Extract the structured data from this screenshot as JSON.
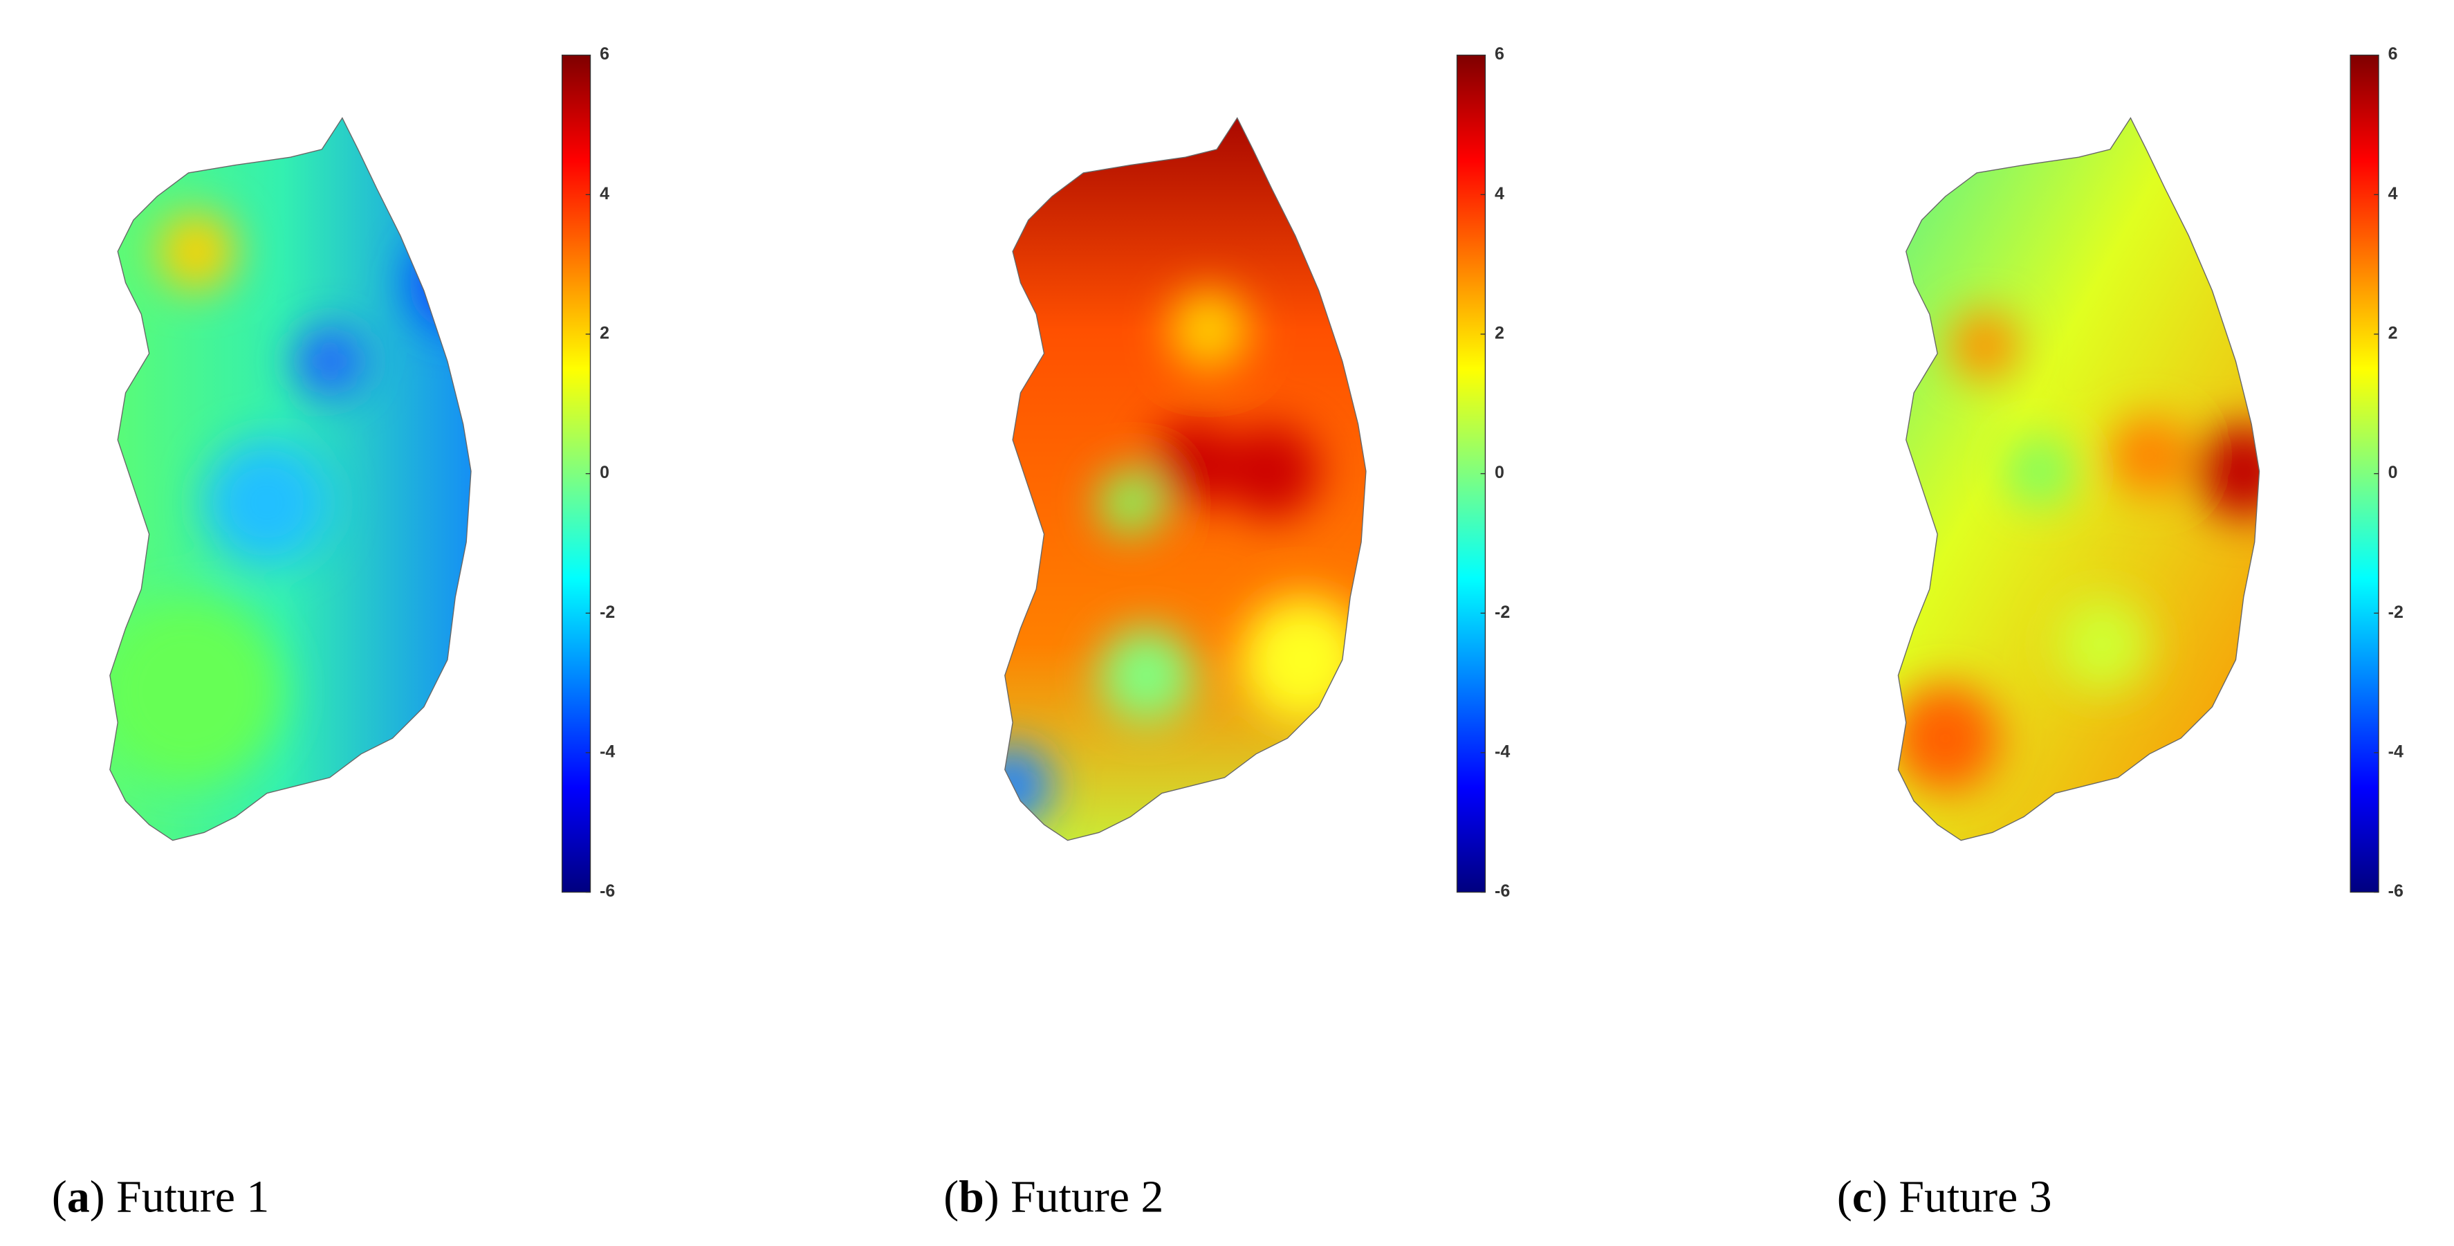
{
  "panels": [
    {
      "caption": [
        "(",
        "a",
        ") Future 1"
      ],
      "colorbar": {
        "lim": [
          -6,
          6
        ],
        "ticks": [
          6,
          4,
          2,
          0,
          -2,
          -4,
          -6
        ]
      }
    },
    {
      "caption": [
        "(",
        "b",
        ") Future 2"
      ],
      "colorbar": {
        "lim": [
          -6,
          6
        ],
        "ticks": [
          6,
          4,
          2,
          0,
          -2,
          -4,
          -6
        ]
      }
    },
    {
      "caption": [
        "(",
        "c",
        ") Future 3"
      ],
      "colorbar": {
        "lim": [
          -6,
          6
        ],
        "ticks": [
          6,
          4,
          2,
          0,
          -2,
          -4,
          -6
        ]
      }
    }
  ]
}
